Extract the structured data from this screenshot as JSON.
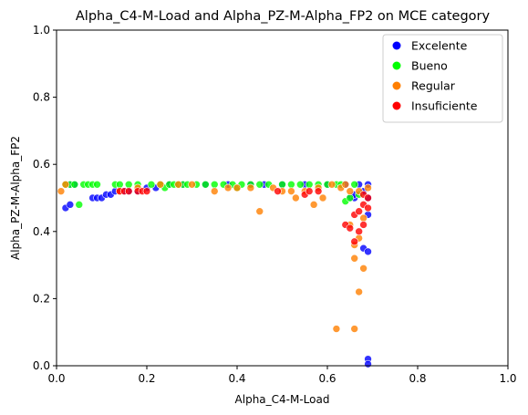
{
  "chart_data": {
    "type": "scatter",
    "title": "Alpha_C4-M-Load and Alpha_PZ-M-Alpha_FP2 on MCE category",
    "xlabel": "Alpha_C4-M-Load",
    "ylabel": "Alpha_PZ-M-Alpha_FP2",
    "xlim": [
      0,
      1
    ],
    "ylim": [
      0,
      1
    ],
    "x_ticks": [
      "0.0",
      "0.2",
      "0.4",
      "0.6",
      "0.8",
      "1.0"
    ],
    "y_ticks": [
      "0.0",
      "0.2",
      "0.4",
      "0.6",
      "0.8",
      "1.0"
    ],
    "grid": false,
    "legend_position": "top-right",
    "series": [
      {
        "name": "Excelente",
        "color": "#0000ff",
        "points": [
          [
            0.02,
            0.47
          ],
          [
            0.03,
            0.48
          ],
          [
            0.03,
            0.54
          ],
          [
            0.04,
            0.54
          ],
          [
            0.08,
            0.5
          ],
          [
            0.09,
            0.5
          ],
          [
            0.1,
            0.5
          ],
          [
            0.11,
            0.51
          ],
          [
            0.12,
            0.51
          ],
          [
            0.13,
            0.52
          ],
          [
            0.15,
            0.52
          ],
          [
            0.16,
            0.52
          ],
          [
            0.18,
            0.52
          ],
          [
            0.2,
            0.53
          ],
          [
            0.22,
            0.53
          ],
          [
            0.25,
            0.54
          ],
          [
            0.28,
            0.54
          ],
          [
            0.33,
            0.54
          ],
          [
            0.38,
            0.54
          ],
          [
            0.43,
            0.54
          ],
          [
            0.46,
            0.54
          ],
          [
            0.5,
            0.54
          ],
          [
            0.55,
            0.54
          ],
          [
            0.6,
            0.54
          ],
          [
            0.64,
            0.54
          ],
          [
            0.65,
            0.5
          ],
          [
            0.66,
            0.5
          ],
          [
            0.66,
            0.51
          ],
          [
            0.67,
            0.54
          ],
          [
            0.68,
            0.52
          ],
          [
            0.68,
            0.35
          ],
          [
            0.69,
            0.54
          ],
          [
            0.69,
            0.5
          ],
          [
            0.69,
            0.45
          ],
          [
            0.69,
            0.34
          ],
          [
            0.69,
            0.02
          ],
          [
            0.69,
            0.005
          ]
        ]
      },
      {
        "name": "Bueno",
        "color": "#00ff00",
        "points": [
          [
            0.02,
            0.54
          ],
          [
            0.03,
            0.54
          ],
          [
            0.04,
            0.54
          ],
          [
            0.05,
            0.48
          ],
          [
            0.06,
            0.54
          ],
          [
            0.07,
            0.54
          ],
          [
            0.08,
            0.54
          ],
          [
            0.09,
            0.54
          ],
          [
            0.13,
            0.54
          ],
          [
            0.14,
            0.54
          ],
          [
            0.16,
            0.54
          ],
          [
            0.18,
            0.54
          ],
          [
            0.21,
            0.54
          ],
          [
            0.23,
            0.54
          ],
          [
            0.24,
            0.53
          ],
          [
            0.25,
            0.54
          ],
          [
            0.26,
            0.54
          ],
          [
            0.27,
            0.54
          ],
          [
            0.28,
            0.54
          ],
          [
            0.29,
            0.54
          ],
          [
            0.31,
            0.54
          ],
          [
            0.33,
            0.54
          ],
          [
            0.35,
            0.54
          ],
          [
            0.37,
            0.54
          ],
          [
            0.39,
            0.54
          ],
          [
            0.4,
            0.53
          ],
          [
            0.41,
            0.54
          ],
          [
            0.43,
            0.54
          ],
          [
            0.45,
            0.54
          ],
          [
            0.47,
            0.54
          ],
          [
            0.5,
            0.54
          ],
          [
            0.52,
            0.54
          ],
          [
            0.54,
            0.54
          ],
          [
            0.56,
            0.54
          ],
          [
            0.58,
            0.54
          ],
          [
            0.6,
            0.54
          ],
          [
            0.62,
            0.54
          ],
          [
            0.63,
            0.54
          ],
          [
            0.64,
            0.49
          ],
          [
            0.65,
            0.5
          ],
          [
            0.66,
            0.54
          ],
          [
            0.67,
            0.51
          ]
        ]
      },
      {
        "name": "Regular",
        "color": "#ff7f00",
        "points": [
          [
            0.01,
            0.52
          ],
          [
            0.02,
            0.54
          ],
          [
            0.14,
            0.52
          ],
          [
            0.18,
            0.53
          ],
          [
            0.23,
            0.54
          ],
          [
            0.27,
            0.54
          ],
          [
            0.3,
            0.54
          ],
          [
            0.35,
            0.52
          ],
          [
            0.38,
            0.53
          ],
          [
            0.4,
            0.53
          ],
          [
            0.43,
            0.53
          ],
          [
            0.45,
            0.46
          ],
          [
            0.48,
            0.53
          ],
          [
            0.5,
            0.52
          ],
          [
            0.52,
            0.52
          ],
          [
            0.53,
            0.5
          ],
          [
            0.55,
            0.52
          ],
          [
            0.57,
            0.48
          ],
          [
            0.58,
            0.53
          ],
          [
            0.59,
            0.5
          ],
          [
            0.61,
            0.54
          ],
          [
            0.62,
            0.11
          ],
          [
            0.63,
            0.53
          ],
          [
            0.64,
            0.54
          ],
          [
            0.65,
            0.42
          ],
          [
            0.65,
            0.52
          ],
          [
            0.66,
            0.36
          ],
          [
            0.66,
            0.32
          ],
          [
            0.66,
            0.11
          ],
          [
            0.67,
            0.38
          ],
          [
            0.67,
            0.22
          ],
          [
            0.67,
            0.52
          ],
          [
            0.68,
            0.29
          ],
          [
            0.68,
            0.44
          ],
          [
            0.69,
            0.53
          ]
        ]
      },
      {
        "name": "Insuficiente",
        "color": "#ff0000",
        "points": [
          [
            0.14,
            0.52
          ],
          [
            0.15,
            0.52
          ],
          [
            0.16,
            0.52
          ],
          [
            0.18,
            0.52
          ],
          [
            0.19,
            0.52
          ],
          [
            0.2,
            0.52
          ],
          [
            0.49,
            0.52
          ],
          [
            0.55,
            0.51
          ],
          [
            0.56,
            0.52
          ],
          [
            0.58,
            0.52
          ],
          [
            0.64,
            0.42
          ],
          [
            0.65,
            0.41
          ],
          [
            0.66,
            0.37
          ],
          [
            0.66,
            0.45
          ],
          [
            0.67,
            0.4
          ],
          [
            0.67,
            0.46
          ],
          [
            0.68,
            0.42
          ],
          [
            0.68,
            0.48
          ],
          [
            0.68,
            0.51
          ],
          [
            0.69,
            0.5
          ],
          [
            0.69,
            0.47
          ]
        ]
      }
    ]
  }
}
